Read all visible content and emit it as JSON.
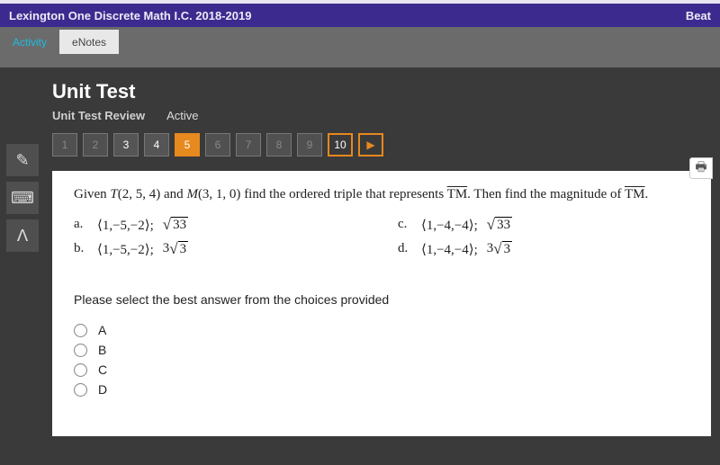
{
  "header": {
    "course_title": "Lexington One Discrete Math I.C. 2018-2019",
    "right_text": "Beat"
  },
  "tabs": {
    "activity": "Activity",
    "enotes": "eNotes"
  },
  "page": {
    "title": "Unit Test",
    "subtitle": "Unit Test Review",
    "status": "Active"
  },
  "nav": {
    "items": [
      {
        "label": "1",
        "state": "dim"
      },
      {
        "label": "2",
        "state": "dim"
      },
      {
        "label": "3",
        "state": "bright"
      },
      {
        "label": "4",
        "state": "bright"
      },
      {
        "label": "5",
        "state": "current"
      },
      {
        "label": "6",
        "state": "dim"
      },
      {
        "label": "7",
        "state": "dim"
      },
      {
        "label": "8",
        "state": "dim"
      },
      {
        "label": "9",
        "state": "dim"
      },
      {
        "label": "10",
        "state": "outlined"
      }
    ],
    "next_arrow": "▶"
  },
  "question": {
    "prefix": "Given ",
    "pointT_label": "T",
    "pointT_coords": "(2, 5, 4)",
    "and": " and ",
    "pointM_label": "M",
    "pointM_coords": "(3, 1, 0)",
    "rest1": " find the ordered triple that represents ",
    "vector1": "TM",
    "rest2": ". Then find the magnitude of ",
    "vector2": "TM",
    "rest3": ".",
    "options": {
      "a": {
        "label": "a.",
        "tuple": "⟨1,−5,−2⟩;",
        "rad_text": "33",
        "coef": ""
      },
      "b": {
        "label": "b.",
        "tuple": "⟨1,−5,−2⟩;",
        "rad_text": "3",
        "coef": "3"
      },
      "c": {
        "label": "c.",
        "tuple": "⟨1,−4,−4⟩;",
        "rad_text": "33",
        "coef": ""
      },
      "d": {
        "label": "d.",
        "tuple": "⟨1,−4,−4⟩;",
        "rad_text": "3",
        "coef": "3"
      }
    },
    "instruction": "Please select the best answer from the choices provided",
    "choices": [
      "A",
      "B",
      "C",
      "D"
    ]
  },
  "icons": {
    "pencil": "✎",
    "calculator": "⌨",
    "highlight": "ᐱ",
    "print": "🖶"
  },
  "colors": {
    "purple": "#3d2a8f",
    "accent": "#e6891e",
    "cyan": "#1dbce0",
    "dark_bg": "#3a3a3a",
    "tab_bg": "#6b6b6b"
  }
}
